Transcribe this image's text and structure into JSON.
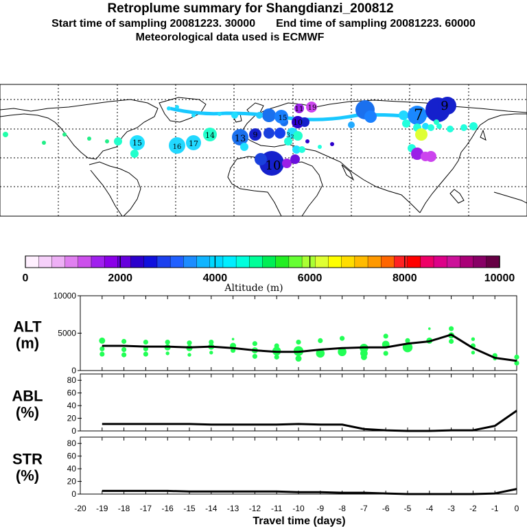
{
  "header": {
    "title": "Retroplume summary for Shangdianzi_200812",
    "start": "Start time of sampling 20081223. 30000",
    "end": "End time of sampling 20081223. 60000",
    "met": "Meteorological data used is ECMWF"
  },
  "colorbar": {
    "ticks": [
      "0",
      "2000",
      "4000",
      "6000",
      "8000",
      "10000"
    ],
    "label": "Altitude (m)",
    "colors": [
      "#fff0ff",
      "#f6d0fa",
      "#eeb0f6",
      "#e080f0",
      "#cc50ec",
      "#a020ee",
      "#8a00e8",
      "#6600dd",
      "#2c00cc",
      "#1010dd",
      "#1c40ee",
      "#2060ff",
      "#1c8cff",
      "#10b4ff",
      "#00d8ff",
      "#00eeff",
      "#00ffdd",
      "#00ff99",
      "#00ee55",
      "#22ee22",
      "#66ff33",
      "#aaff33",
      "#dfff33",
      "#ffff00",
      "#ffdd00",
      "#ffbb00",
      "#ff9900",
      "#ff6600",
      "#ff2222",
      "#ff0000",
      "#ee0066",
      "#dd0088",
      "#cc1199",
      "#aa0077",
      "#880066",
      "#660044"
    ]
  },
  "plume_map": {
    "labels": [
      {
        "t": "19",
        "c": "#cc44ee"
      },
      {
        "t": "11",
        "c": "#9b20e8"
      },
      {
        "t": "7",
        "c": "#1aa8ff"
      },
      {
        "t": "9",
        "c": "#1520cc"
      },
      {
        "t": "13",
        "c": "#1520cc"
      },
      {
        "t": "10",
        "c": "#1520cc"
      },
      {
        "t": "17",
        "c": "#22d0ff"
      },
      {
        "t": "14",
        "c": "#22d8ff"
      },
      {
        "t": "16",
        "c": "#22ccff"
      },
      {
        "t": "15",
        "c": "#22e0ff"
      },
      {
        "t": "3",
        "c": "#20ff99"
      },
      {
        "t": "2",
        "c": "#22ee88"
      }
    ]
  },
  "chart_data": [
    {
      "type": "line",
      "ylabel": "ALT\n(m)",
      "ylabel_lines": [
        "ALT",
        "(m)"
      ],
      "ylim": [
        0,
        10000
      ],
      "yticks": [
        "0",
        "5000",
        "10000"
      ],
      "x": [
        -19,
        -18,
        -17,
        -16,
        -15,
        -14,
        -13,
        -12,
        -11,
        -10,
        -9,
        -8,
        -7,
        -6,
        -5,
        -4,
        -3,
        -2,
        -1,
        0
      ],
      "series": [
        {
          "name": "mean altitude",
          "values": [
            3300,
            3300,
            3200,
            3200,
            3100,
            3200,
            3000,
            2700,
            2500,
            2500,
            2800,
            3000,
            3100,
            3100,
            3600,
            3900,
            4800,
            3000,
            1700,
            1300
          ]
        }
      ],
      "points": [
        [
          -19,
          4000,
          5
        ],
        [
          -19,
          2900,
          4
        ],
        [
          -19,
          2200,
          4
        ],
        [
          -18,
          3900,
          4
        ],
        [
          -18,
          2800,
          4
        ],
        [
          -18,
          2100,
          4
        ],
        [
          -17,
          3800,
          4
        ],
        [
          -17,
          2900,
          4
        ],
        [
          -17,
          2200,
          4
        ],
        [
          -16,
          3800,
          4
        ],
        [
          -16,
          3100,
          5
        ],
        [
          -16,
          2300,
          3
        ],
        [
          -15,
          3700,
          4
        ],
        [
          -15,
          3000,
          5
        ],
        [
          -15,
          2100,
          3
        ],
        [
          -14,
          3800,
          4
        ],
        [
          -14,
          3200,
          5
        ],
        [
          -14,
          2400,
          3
        ],
        [
          -13,
          4200,
          2
        ],
        [
          -13,
          3300,
          5
        ],
        [
          -13,
          2700,
          4
        ],
        [
          -12,
          3600,
          4
        ],
        [
          -12,
          2700,
          5
        ],
        [
          -12,
          1900,
          4
        ],
        [
          -11,
          3300,
          4
        ],
        [
          -11,
          2600,
          7
        ],
        [
          -11,
          1800,
          4
        ],
        [
          -10,
          3800,
          4
        ],
        [
          -10,
          2600,
          8
        ],
        [
          -10,
          1600,
          5
        ],
        [
          -9,
          4000,
          4
        ],
        [
          -9,
          2300,
          7
        ],
        [
          -8,
          4300,
          4
        ],
        [
          -8,
          2500,
          7
        ],
        [
          -7,
          3000,
          7
        ],
        [
          -7,
          2300,
          6
        ],
        [
          -7,
          1800,
          5
        ],
        [
          -6,
          4600,
          4
        ],
        [
          -6,
          3500,
          6
        ],
        [
          -6,
          2300,
          4
        ],
        [
          -5,
          4000,
          4
        ],
        [
          -5,
          3100,
          8
        ],
        [
          -4,
          5600,
          2
        ],
        [
          -4,
          4000,
          5
        ],
        [
          -3,
          5600,
          4
        ],
        [
          -3,
          4700,
          5
        ],
        [
          -3,
          3900,
          4
        ],
        [
          -2,
          4200,
          3
        ],
        [
          -2,
          3300,
          4
        ],
        [
          -2,
          2400,
          3
        ],
        [
          -1,
          2000,
          4
        ],
        [
          -1,
          1600,
          3
        ],
        [
          0,
          1800,
          4
        ],
        [
          0,
          1000,
          4
        ]
      ],
      "point_color": "#22ff55"
    },
    {
      "type": "line",
      "ylabel_lines": [
        "ABL",
        "(%)"
      ],
      "ylim": [
        0,
        90
      ],
      "yticks": [
        "0",
        "20",
        "40",
        "60",
        "80"
      ],
      "x": [
        -19,
        -18,
        -17,
        -16,
        -15,
        -14,
        -13,
        -12,
        -11,
        -10,
        -9,
        -8,
        -7,
        -6,
        -5,
        -4,
        -3,
        -2,
        -1,
        0
      ],
      "series": [
        {
          "name": "ABL fraction",
          "values": [
            11,
            11,
            11,
            11,
            11,
            10,
            10,
            10,
            10,
            11,
            10,
            10,
            3,
            1,
            0,
            0,
            1,
            1,
            8,
            32
          ]
        }
      ]
    },
    {
      "type": "line",
      "ylabel_lines": [
        "STR",
        "(%)"
      ],
      "ylim": [
        0,
        90
      ],
      "yticks": [
        "0",
        "20",
        "40",
        "60",
        "80"
      ],
      "x": [
        -19,
        -18,
        -17,
        -16,
        -15,
        -14,
        -13,
        -12,
        -11,
        -10,
        -9,
        -8,
        -7,
        -6,
        -5,
        -4,
        -3,
        -2,
        -1,
        0
      ],
      "series": [
        {
          "name": "stratosphere fraction",
          "values": [
            5,
            5,
            5,
            5,
            4,
            4,
            4,
            4,
            4,
            3,
            3,
            2,
            2,
            1,
            0,
            0,
            0,
            0,
            1,
            8
          ]
        }
      ],
      "xlabel": "Travel time (days)",
      "xticks": [
        "-20",
        "-19",
        "-18",
        "-17",
        "-16",
        "-15",
        "-14",
        "-13",
        "-12",
        "-11",
        "-10",
        "-9",
        "-8",
        "-7",
        "-6",
        "-5",
        "-4",
        "-3",
        "-2",
        "-1",
        "0"
      ]
    }
  ]
}
